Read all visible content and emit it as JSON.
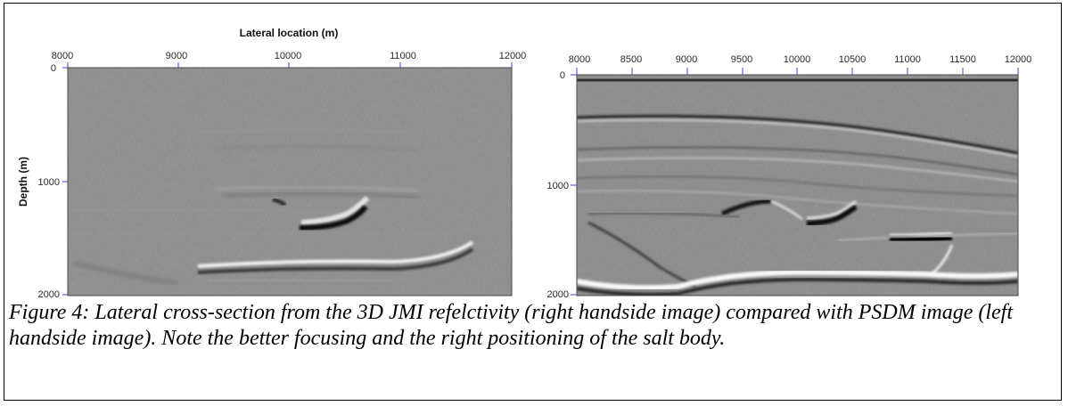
{
  "figure": {
    "left_panel": {
      "x_axis_title": "Lateral location (m)",
      "y_axis_title": "Depth (m)",
      "x_ticks": [
        "8000",
        "9000",
        "10000",
        "11000",
        "12000"
      ],
      "y_ticks": [
        "0",
        "1000",
        "2000"
      ]
    },
    "right_panel": {
      "x_ticks": [
        "8000",
        "8500",
        "9000",
        "9500",
        "10000",
        "10500",
        "11000",
        "11500",
        "12000"
      ],
      "y_ticks": [
        "0",
        "1000",
        "2000"
      ]
    },
    "colors": {
      "tick_color": "#4444cc",
      "frame": "#000000"
    }
  },
  "caption": "Figure 4: Lateral cross-section from the 3D JMI refelctivity (right handside image) compared with PSDM image (left handside image). Note the better focusing and the right positioning of the salt body."
}
